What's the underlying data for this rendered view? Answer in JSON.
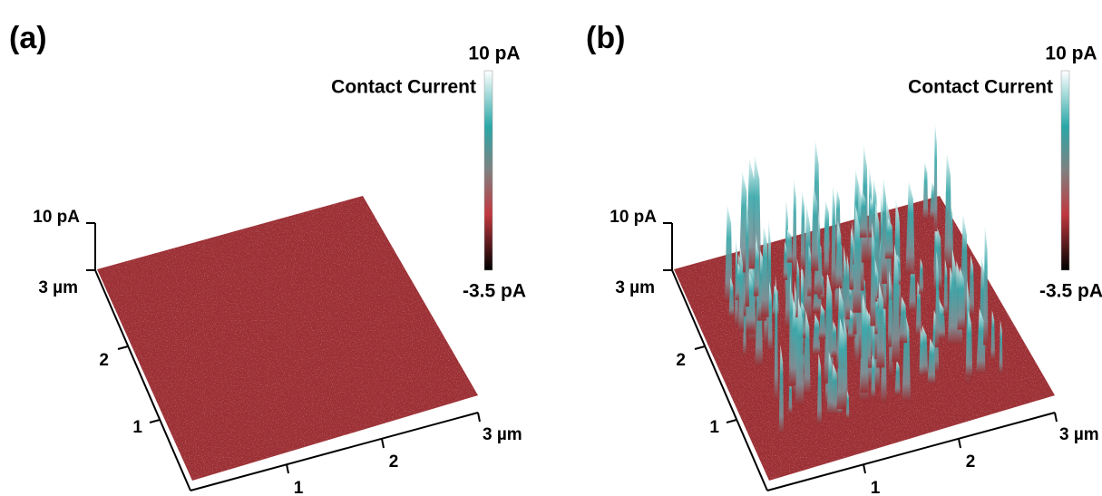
{
  "panels": [
    {
      "label": "(a)",
      "colorbar": {
        "title": "Contact Current",
        "max": "10 pA",
        "min": "-3.5 pA"
      },
      "z_axis": {
        "max": "10 pA"
      },
      "y_axis": {
        "end": "3 µm",
        "ticks": [
          "1",
          "2"
        ]
      },
      "x_axis": {
        "end": "3 µm",
        "ticks": [
          "1",
          "2"
        ]
      }
    },
    {
      "label": "(b)",
      "colorbar": {
        "title": "Contact Current",
        "max": "10 pA",
        "min": "-3.5 pA"
      },
      "z_axis": {
        "max": "10 pA"
      },
      "y_axis": {
        "end": "3 µm",
        "ticks": [
          "1",
          "2"
        ]
      },
      "x_axis": {
        "end": "3 µm",
        "ticks": [
          "1",
          "2"
        ]
      }
    }
  ]
}
